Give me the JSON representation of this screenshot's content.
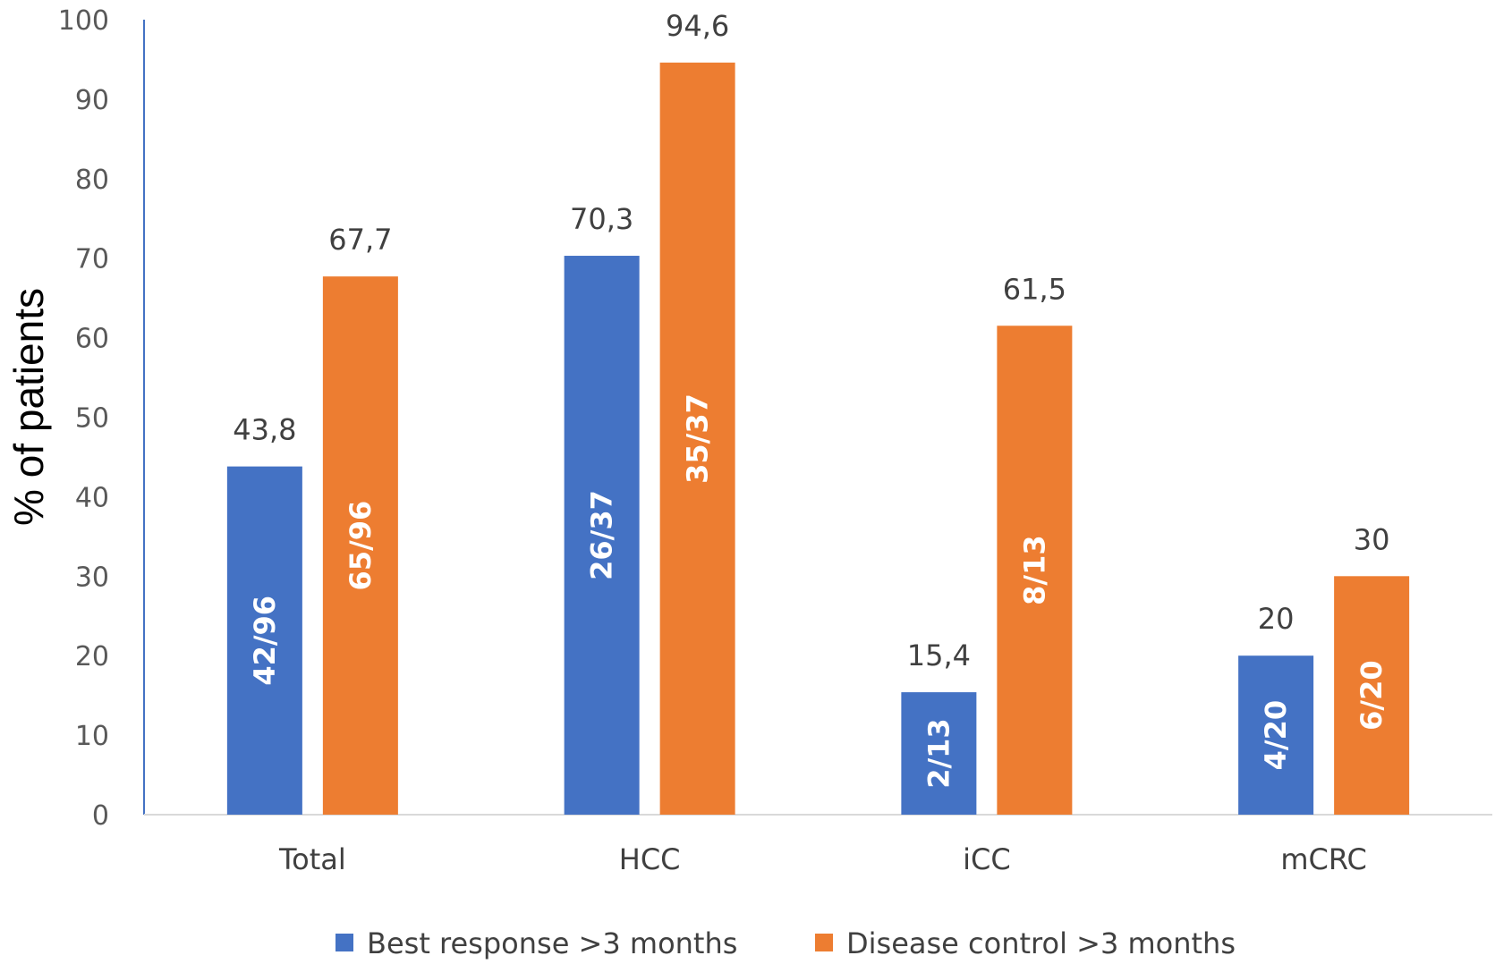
{
  "chart_data": {
    "type": "bar",
    "title": "",
    "xlabel": "",
    "ylabel": "% of patients",
    "ylim": [
      0,
      100
    ],
    "yticks": [
      0,
      10,
      20,
      30,
      40,
      50,
      60,
      70,
      80,
      90,
      100
    ],
    "grid": false,
    "legend_position": "bottom",
    "categories": [
      "Total",
      "HCC",
      "iCC",
      "mCRC"
    ],
    "series": [
      {
        "name": "Best response >3 months",
        "color": "#4472C4",
        "values": [
          43.8,
          70.3,
          15.4,
          20
        ],
        "value_labels": [
          "43,8",
          "70,3",
          "15,4",
          "20"
        ],
        "inside_labels": [
          "42/96",
          "26/37",
          "2/13",
          "4/20"
        ]
      },
      {
        "name": "Disease control >3 months",
        "color": "#ED7D31",
        "values": [
          67.7,
          94.6,
          61.5,
          30
        ],
        "value_labels": [
          "67,7",
          "94,6",
          "61,5",
          "30"
        ],
        "inside_labels": [
          "65/96",
          "35/37",
          "8/13",
          "6/20"
        ]
      }
    ]
  }
}
